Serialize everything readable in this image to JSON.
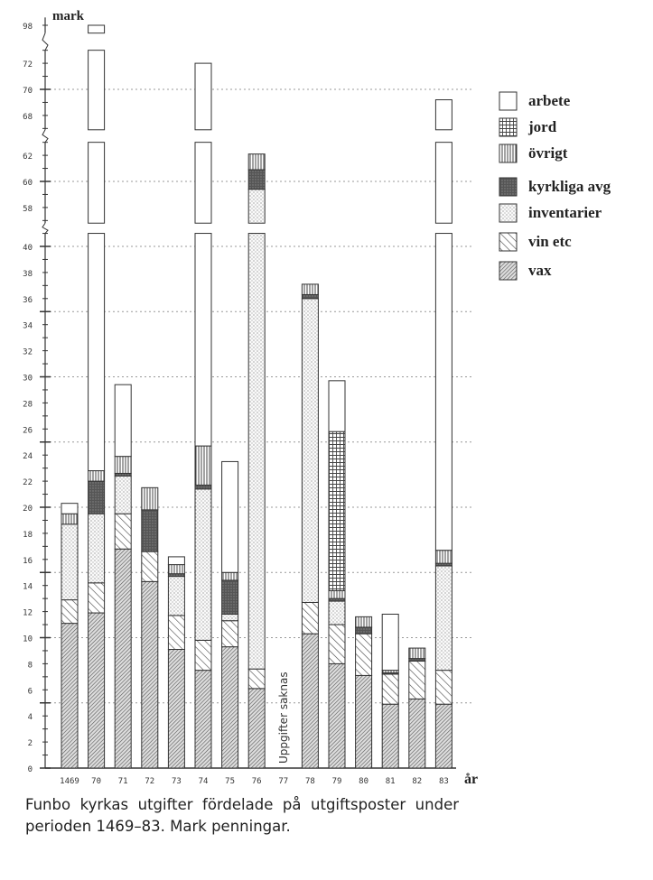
{
  "chart_data": {
    "type": "bar",
    "stacked": true,
    "title": "Funbo kyrkas utgifter fördelade på utgiftsposter under perioden 1469–83. Mark penningar.",
    "ylabel": "mark",
    "xlabel": "år",
    "categories": [
      "1469",
      "70",
      "71",
      "72",
      "73",
      "74",
      "75",
      "76",
      "77",
      "78",
      "79",
      "80",
      "81",
      "82",
      "83"
    ],
    "axis_segments": [
      [
        0,
        41
      ],
      [
        56.8,
        63
      ],
      [
        66.9,
        73
      ],
      [
        97.4,
        98.6
      ]
    ],
    "yticks_labeled": [
      0,
      2,
      4,
      6,
      8,
      10,
      12,
      14,
      16,
      18,
      20,
      22,
      24,
      26,
      28,
      30,
      32,
      34,
      36,
      38,
      40,
      58,
      60,
      62,
      68,
      70,
      72,
      98
    ],
    "gridlines": [
      5,
      10,
      15,
      20,
      25,
      30,
      35,
      40,
      60,
      70
    ],
    "legend_position": "top-right",
    "annotation": "Uppgifter saknas",
    "annotation_category": "77",
    "series": [
      {
        "name": "vax",
        "pattern": "dense-hatch",
        "values": [
          11.1,
          11.9,
          16.8,
          14.3,
          9.1,
          7.5,
          9.3,
          6.1,
          null,
          10.3,
          8.0,
          7.1,
          4.9,
          5.3,
          4.9
        ]
      },
      {
        "name": "vin etc",
        "pattern": "sparse-hatch",
        "values": [
          1.8,
          2.3,
          2.7,
          2.3,
          2.6,
          2.3,
          2.0,
          1.5,
          null,
          2.4,
          3.0,
          3.2,
          2.3,
          2.9,
          2.6
        ]
      },
      {
        "name": "inventarier",
        "pattern": "dots",
        "values": [
          5.8,
          5.3,
          2.9,
          0,
          3.0,
          11.6,
          0.5,
          51.8,
          null,
          23.3,
          1.8,
          0,
          0,
          0,
          8.0
        ]
      },
      {
        "name": "kyrkliga avg",
        "pattern": "dark",
        "values": [
          0,
          2.5,
          0.2,
          3.2,
          0.2,
          0.3,
          2.6,
          1.5,
          null,
          0.3,
          0.2,
          0.5,
          0.1,
          0.2,
          0.2
        ]
      },
      {
        "name": "övrigt",
        "pattern": "vertical",
        "values": [
          0.8,
          0.8,
          1.3,
          1.7,
          0.7,
          3.0,
          0.6,
          1.2,
          null,
          0.8,
          0.6,
          0.8,
          0.2,
          0.8,
          1.0
        ]
      },
      {
        "name": "jord",
        "pattern": "grid",
        "values": [
          0,
          0,
          0,
          0,
          0,
          0,
          0,
          0,
          null,
          0,
          12.2,
          0,
          0,
          0,
          0
        ]
      },
      {
        "name": "arbete",
        "pattern": "white",
        "values": [
          0.8,
          75.2,
          5.5,
          0,
          0.6,
          47.3,
          8.5,
          0,
          null,
          0,
          3.9,
          0,
          4.3,
          0,
          52.5
        ]
      }
    ]
  },
  "legend": {
    "items": [
      {
        "label": "arbete",
        "pattern": "white"
      },
      {
        "label": "jord",
        "pattern": "grid"
      },
      {
        "label": "övrigt",
        "pattern": "vertical"
      },
      {
        "label": "kyrkliga avg",
        "pattern": "dark"
      },
      {
        "label": "inventarier",
        "pattern": "dots"
      },
      {
        "label": "vin etc",
        "pattern": "sparse-hatch"
      },
      {
        "label": "vax",
        "pattern": "dense-hatch"
      }
    ]
  },
  "caption": "Funbo kyrkas utgifter fördelade på utgiftsposter under perioden 1469–83. Mark penningar."
}
